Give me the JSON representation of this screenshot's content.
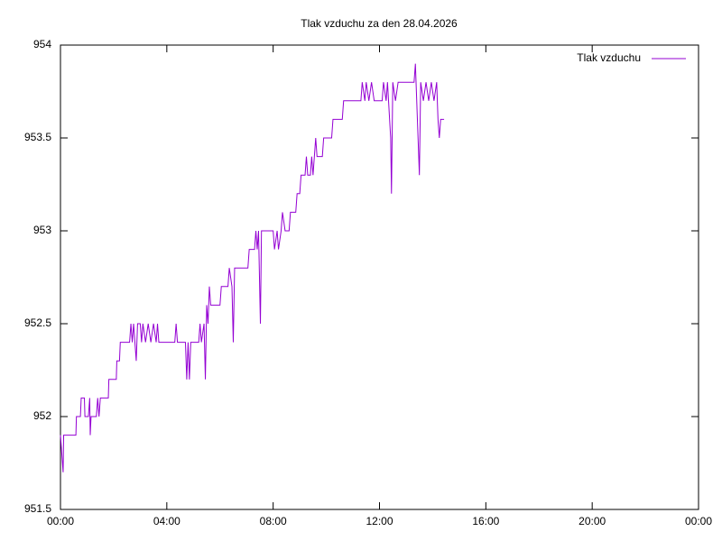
{
  "chart_data": {
    "type": "line",
    "title": "Tlak vzduchu za den 28.04.2026",
    "x": [
      0,
      0.1,
      0.12,
      0.58,
      0.6,
      0.75,
      0.78,
      0.9,
      0.92,
      1.05,
      1.1,
      1.12,
      1.15,
      1.35,
      1.4,
      1.45,
      1.5,
      1.8,
      1.82,
      2.1,
      2.12,
      2.22,
      2.25,
      2.6,
      2.65,
      2.7,
      2.75,
      2.85,
      2.9,
      3.0,
      3.05,
      3.1,
      3.2,
      3.3,
      3.4,
      3.5,
      3.6,
      3.65,
      3.7,
      4.3,
      4.35,
      4.4,
      4.7,
      4.75,
      4.8,
      4.85,
      4.9,
      5.2,
      5.25,
      5.3,
      5.4,
      5.45,
      5.5,
      5.55,
      5.6,
      5.65,
      6.0,
      6.05,
      6.3,
      6.35,
      6.45,
      6.5,
      6.55,
      7.05,
      7.1,
      7.3,
      7.35,
      7.4,
      7.45,
      7.52,
      7.56,
      8.0,
      8.05,
      8.15,
      8.2,
      8.3,
      8.35,
      8.45,
      8.6,
      8.65,
      8.85,
      8.9,
      9.0,
      9.05,
      9.2,
      9.25,
      9.3,
      9.4,
      9.45,
      9.5,
      9.55,
      9.6,
      9.65,
      9.85,
      9.9,
      10.2,
      10.25,
      10.6,
      10.65,
      11.3,
      11.35,
      11.45,
      11.5,
      11.6,
      11.7,
      11.8,
      12.1,
      12.15,
      12.25,
      12.3,
      12.42,
      12.45,
      12.5,
      12.6,
      12.7,
      13.3,
      13.35,
      13.4,
      13.5,
      13.55,
      13.65,
      13.75,
      13.85,
      13.95,
      14.05,
      14.15,
      14.2,
      14.25,
      14.3,
      14.43
    ],
    "series": [
      {
        "name": "Tlak vzduchu",
        "color": "#9400d3",
        "values": [
          951.9,
          951.7,
          951.9,
          951.9,
          952.0,
          952.0,
          952.1,
          952.1,
          952.0,
          952.0,
          952.1,
          951.9,
          952.0,
          952.0,
          952.1,
          952.0,
          952.1,
          952.1,
          952.2,
          952.2,
          952.3,
          952.3,
          952.4,
          952.4,
          952.5,
          952.4,
          952.5,
          952.3,
          952.5,
          952.5,
          952.4,
          952.5,
          952.4,
          952.5,
          952.4,
          952.5,
          952.4,
          952.5,
          952.4,
          952.4,
          952.5,
          952.4,
          952.4,
          952.2,
          952.4,
          952.2,
          952.4,
          952.4,
          952.5,
          952.4,
          952.5,
          952.2,
          952.6,
          952.5,
          952.7,
          952.6,
          952.6,
          952.7,
          952.7,
          952.8,
          952.7,
          952.4,
          952.8,
          952.8,
          952.9,
          952.9,
          953.0,
          952.9,
          953.0,
          952.5,
          953.0,
          953.0,
          952.9,
          953.0,
          952.9,
          953.0,
          953.1,
          953.0,
          953.0,
          953.1,
          953.1,
          953.2,
          953.2,
          953.3,
          953.3,
          953.4,
          953.3,
          953.3,
          953.4,
          953.3,
          953.4,
          953.5,
          953.4,
          953.4,
          953.5,
          953.5,
          953.6,
          953.6,
          953.7,
          953.7,
          953.8,
          953.7,
          953.8,
          953.7,
          953.8,
          953.7,
          953.7,
          953.8,
          953.7,
          953.8,
          953.5,
          953.2,
          953.8,
          953.7,
          953.8,
          953.8,
          953.9,
          953.7,
          953.3,
          953.8,
          953.7,
          953.8,
          953.7,
          953.8,
          953.7,
          953.8,
          953.6,
          953.5,
          953.6,
          953.6
        ]
      }
    ],
    "xlim": [
      0,
      24
    ],
    "xticks": [
      {
        "value": 0,
        "label": "00:00"
      },
      {
        "value": 4,
        "label": "04:00"
      },
      {
        "value": 8,
        "label": "08:00"
      },
      {
        "value": 12,
        "label": "12:00"
      },
      {
        "value": 16,
        "label": "16:00"
      },
      {
        "value": 20,
        "label": "20:00"
      },
      {
        "value": 24,
        "label": "00:00"
      }
    ],
    "ylim": [
      951.5,
      954
    ],
    "yticks": [
      951.5,
      952,
      952.5,
      953,
      953.5,
      954
    ],
    "grid": false,
    "legend": "top-right"
  }
}
